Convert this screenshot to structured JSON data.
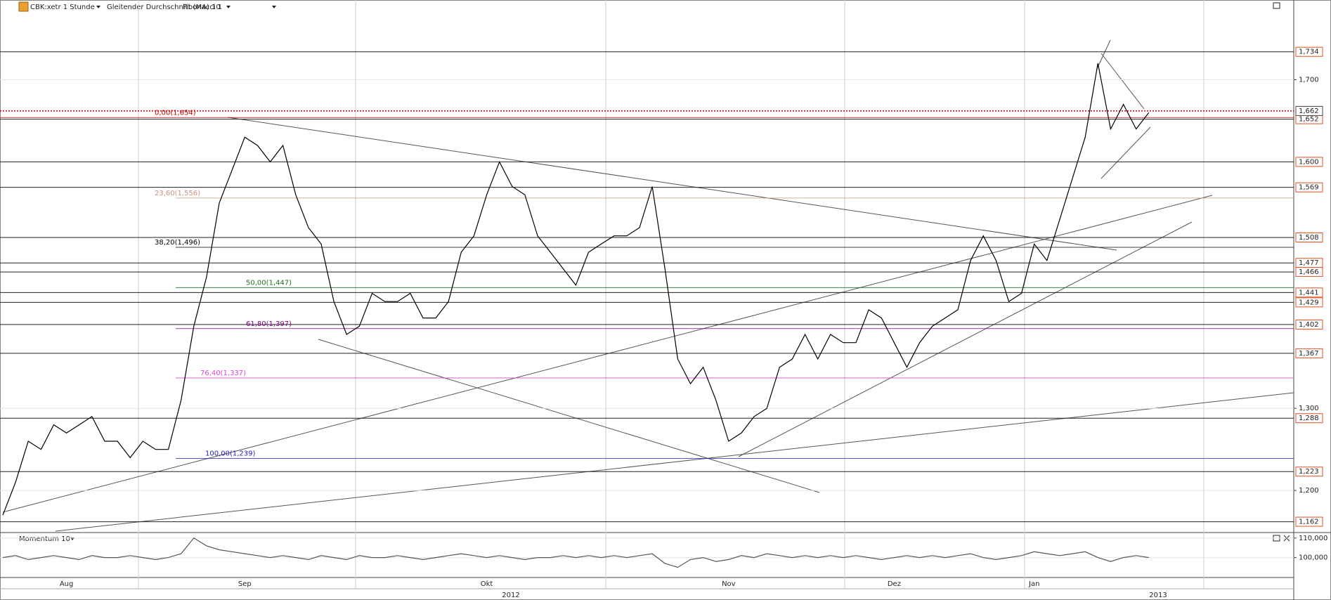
{
  "toolbar": {
    "symbol": "CBK:xetr 1 Stunde",
    "indicator": "Gleitender Durchschnitt (MA) 10",
    "tool": "Fibonacci 1"
  },
  "chart_data": [
    {
      "type": "line",
      "categories": [
        null,
        null,
        null,
        null,
        null,
        "Aug",
        null,
        null,
        null,
        null,
        null,
        null,
        null,
        null,
        null,
        null,
        null,
        null,
        null,
        "Sep",
        null,
        null,
        null,
        null,
        null,
        null,
        null,
        null,
        null,
        null,
        null,
        null,
        null,
        null,
        null,
        null,
        null,
        null,
        "Okt",
        null,
        null,
        null,
        null,
        null,
        null,
        null,
        null,
        null,
        null,
        null,
        null,
        null,
        null,
        null,
        null,
        null,
        null,
        "Nov",
        null,
        null,
        null,
        null,
        null,
        null,
        null,
        null,
        null,
        null,
        null,
        null,
        "Dez",
        null,
        null,
        null,
        null,
        null,
        null,
        null,
        null,
        null,
        null,
        "Jan",
        null,
        null,
        null,
        null,
        null,
        null,
        null,
        null,
        null
      ],
      "years": [
        "2012",
        "2013"
      ],
      "series": [
        {
          "color": "#000000",
          "values": [
            1.17,
            1.21,
            1.26,
            1.25,
            1.28,
            1.27,
            1.28,
            1.29,
            1.26,
            1.26,
            1.24,
            1.26,
            1.25,
            1.25,
            1.31,
            1.4,
            1.46,
            1.55,
            1.59,
            1.63,
            1.62,
            1.6,
            1.62,
            1.56,
            1.52,
            1.5,
            1.43,
            1.39,
            1.4,
            1.44,
            1.43,
            1.43,
            1.44,
            1.41,
            1.41,
            1.43,
            1.49,
            1.51,
            1.56,
            1.6,
            1.57,
            1.56,
            1.51,
            1.49,
            1.47,
            1.45,
            1.49,
            1.5,
            1.51,
            1.51,
            1.52,
            1.57,
            1.47,
            1.36,
            1.33,
            1.35,
            1.31,
            1.26,
            1.27,
            1.29,
            1.3,
            1.35,
            1.36,
            1.39,
            1.36,
            1.39,
            1.38,
            1.38,
            1.42,
            1.41,
            1.38,
            1.35,
            1.38,
            1.4,
            1.41,
            1.42,
            1.48,
            1.51,
            1.48,
            1.43,
            1.44,
            1.5,
            1.48,
            1.53,
            1.58,
            1.63,
            1.72,
            1.64,
            1.67,
            1.64,
            1.66
          ]
        }
      ],
      "ylim": [
        1.15,
        1.795
      ],
      "yticks": [
        {
          "value": 1.7,
          "label": "1,700"
        },
        {
          "value": 1.3,
          "label": "1,300"
        },
        {
          "value": 1.2,
          "label": "1,200"
        }
      ],
      "levels": [
        {
          "value": 1.734,
          "label": "1,734"
        },
        {
          "value": 1.652,
          "label": "1,652"
        },
        {
          "value": 1.6,
          "label": "1,600"
        },
        {
          "value": 1.569,
          "label": "1,569"
        },
        {
          "value": 1.508,
          "label": "1,508"
        },
        {
          "value": 1.477,
          "label": "1,477"
        },
        {
          "value": 1.466,
          "label": "1,466"
        },
        {
          "value": 1.441,
          "label": "1,441"
        },
        {
          "value": 1.429,
          "label": "1,429"
        },
        {
          "value": 1.402,
          "label": "1,402"
        },
        {
          "value": 1.367,
          "label": "1,367"
        },
        {
          "value": 1.288,
          "label": "1,288"
        },
        {
          "value": 1.223,
          "label": "1,223"
        },
        {
          "value": 1.162,
          "label": "1,162"
        }
      ],
      "level_color": "#e05020",
      "last_price": {
        "value": 1.662,
        "label": "1,662",
        "color": "#cc0000"
      },
      "fib_levels": [
        {
          "value": 1.654,
          "label": "0,00(1,654)",
          "color": "#c00000"
        },
        {
          "value": 1.556,
          "label": "23,60(1,556)",
          "color": "#d09080"
        },
        {
          "value": 1.496,
          "label": "38,20(1,496)",
          "color": "#000000"
        },
        {
          "value": 1.447,
          "label": "50,00(1,447)",
          "color": "#207020"
        },
        {
          "value": 1.397,
          "label": "61,80(1,397)",
          "color": "#800080"
        },
        {
          "value": 1.337,
          "label": "76,40(1,337)",
          "color": "#e040e0"
        },
        {
          "value": 1.239,
          "label": "100,00(1,239)",
          "color": "#2020c0"
        }
      ]
    },
    {
      "type": "line",
      "title": "Momentum 10",
      "series": [
        {
          "color": "#555555",
          "values": [
            100,
            101,
            99,
            100,
            101,
            100,
            99,
            101,
            100,
            100,
            101,
            100,
            99,
            100,
            102,
            110,
            106,
            104,
            103,
            102,
            101,
            100,
            101,
            100,
            99,
            101,
            100,
            99,
            101,
            100,
            100,
            101,
            100,
            99,
            100,
            101,
            102,
            101,
            100,
            101,
            100,
            99,
            100,
            100,
            101,
            100,
            101,
            100,
            101,
            100,
            101,
            102,
            97,
            95,
            99,
            100,
            98,
            99,
            101,
            100,
            102,
            101,
            100,
            101,
            100,
            101,
            100,
            101,
            100,
            99,
            100,
            101,
            100,
            101,
            100,
            101,
            102,
            100,
            99,
            100,
            101,
            103,
            102,
            101,
            102,
            103,
            100,
            98,
            100,
            101,
            100
          ]
        }
      ],
      "ylim": [
        90,
        112.6
      ],
      "yticks": [
        {
          "value": 110,
          "label": "110,000"
        },
        {
          "value": 100,
          "label": "100,000"
        }
      ]
    }
  ]
}
